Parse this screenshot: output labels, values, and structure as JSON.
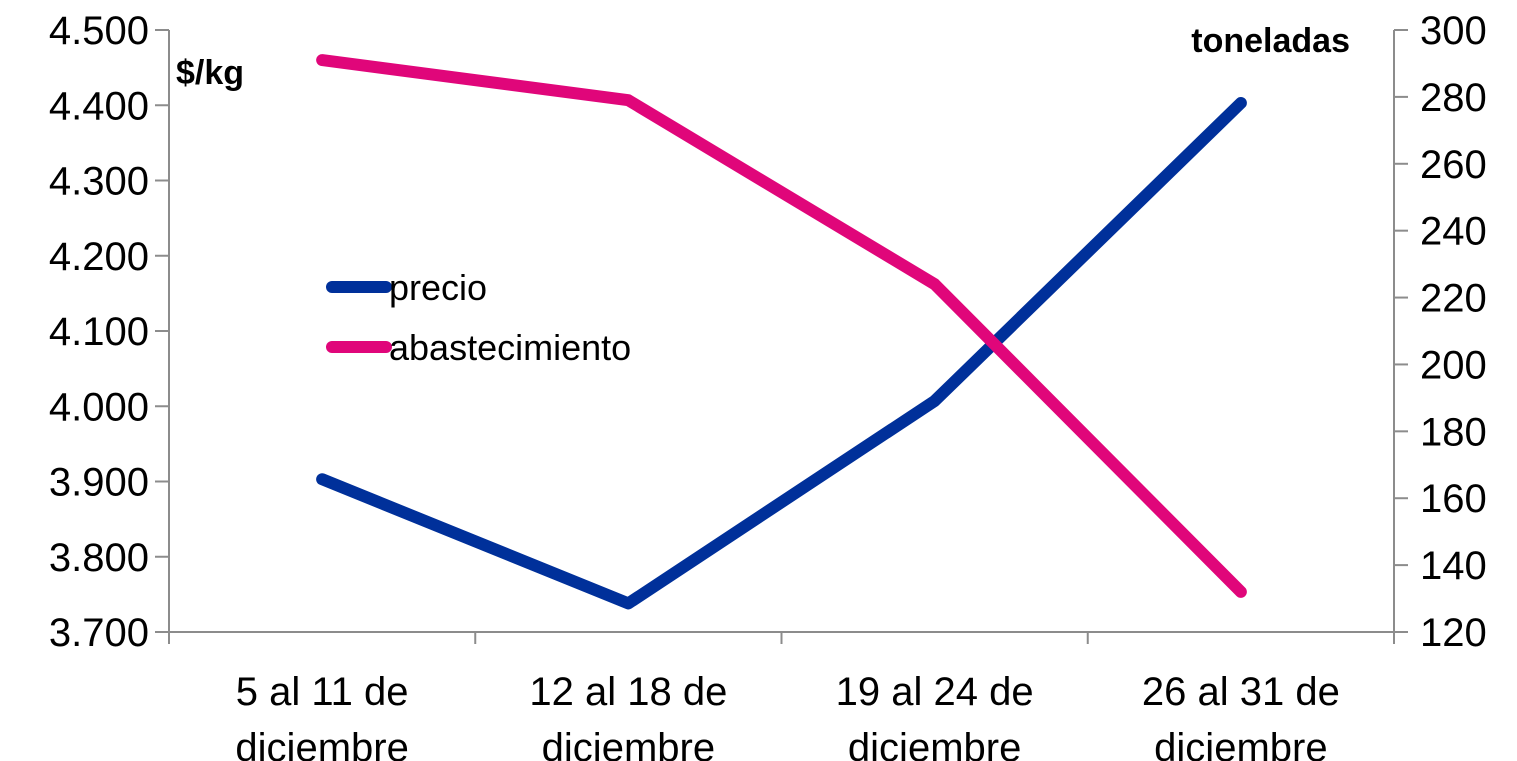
{
  "chart_data": {
    "type": "line",
    "categories": [
      [
        "5 al 11 de",
        "diciembre"
      ],
      [
        "12 al 18 de",
        "diciembre"
      ],
      [
        "19 al 24 de",
        "diciembre"
      ],
      [
        "26 al 31 de",
        "diciembre"
      ]
    ],
    "y_left": {
      "label": "$/kg",
      "ylim": [
        3.7,
        4.5
      ],
      "ticks": [
        3.7,
        3.8,
        3.9,
        4.0,
        4.1,
        4.2,
        4.3,
        4.4,
        4.5
      ],
      "tick_labels": [
        "3.700",
        "3.800",
        "3.900",
        "4.000",
        "4.100",
        "4.200",
        "4.300",
        "4.400",
        "4.500"
      ]
    },
    "y_right": {
      "label": "toneladas",
      "ylim": [
        120,
        300
      ],
      "ticks": [
        120,
        140,
        160,
        180,
        200,
        220,
        240,
        260,
        280,
        300
      ],
      "tick_labels": [
        "120",
        "140",
        "160",
        "180",
        "200",
        "220",
        "240",
        "260",
        "280",
        "300"
      ]
    },
    "series": [
      {
        "name": "precio",
        "axis": "left",
        "color": "#00309a",
        "values": [
          3.903,
          3.738,
          4.007,
          4.403
        ]
      },
      {
        "name": "abastecimiento",
        "axis": "right",
        "color": "#e0067a",
        "values": [
          291,
          279,
          224,
          132
        ]
      }
    ],
    "legend": "left-center",
    "grid": false
  }
}
